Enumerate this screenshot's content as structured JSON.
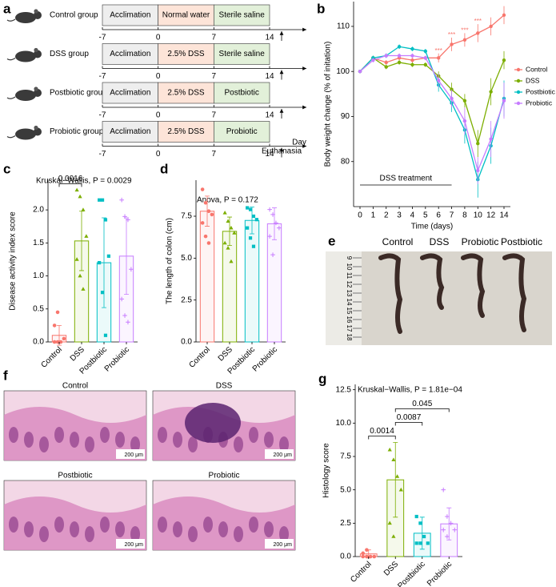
{
  "timeline": {
    "panel_label": "a",
    "days": [
      -7,
      0,
      7,
      14
    ],
    "groups": [
      {
        "name": "Control group",
        "phases": [
          "Acclimation",
          "Normal water",
          "Sterile saline"
        ]
      },
      {
        "name": "DSS group",
        "phases": [
          "Acclimation",
          "2.5% DSS",
          "Sterile saline"
        ]
      },
      {
        "name": "Postbiotic group",
        "phases": [
          "Acclimation",
          "2.5% DSS",
          "Postbiotic"
        ]
      },
      {
        "name": "Probiotic group",
        "phases": [
          "Acclimation",
          "2.5% DSS",
          "Probiotic"
        ]
      }
    ],
    "phase_colors": [
      "#eeeeee",
      "#fde4d8",
      "#e2f0d9"
    ],
    "end_label": "Euthanasia",
    "axis_label": "Day"
  },
  "chart_data": [
    {
      "type": "line",
      "panel_label": "b",
      "x_label": "Time (days)",
      "y_label": "Body weight change (% of initation)",
      "categories": [
        "0",
        "1",
        "2",
        "3",
        "4",
        "5",
        "6",
        "7",
        "8",
        "10",
        "12",
        "14"
      ],
      "ylim": [
        70,
        115.5
      ],
      "yticks": [
        80,
        90,
        100,
        110
      ],
      "annotation": "DSS treatment",
      "significance": [
        null,
        null,
        null,
        null,
        null,
        null,
        "***",
        "***",
        "***",
        "***",
        null,
        null
      ],
      "legend": "right",
      "series": [
        {
          "name": "Control",
          "color": "#F8766D",
          "values": [
            100,
            103,
            102,
            103,
            102.5,
            103,
            103,
            106,
            107,
            108.5,
            110,
            112.5
          ],
          "errors": [
            0,
            0.5,
            0.5,
            0.5,
            0.5,
            0.5,
            1,
            1.5,
            1.5,
            2,
            2,
            2
          ]
        },
        {
          "name": "DSS",
          "color": "#7CAE00",
          "values": [
            100,
            103,
            101,
            102,
            101.5,
            101.5,
            99,
            96,
            93.5,
            84,
            95.5,
            102.5
          ],
          "errors": [
            0,
            0.5,
            0.5,
            0.5,
            0.5,
            0.5,
            1,
            1.5,
            1.5,
            3,
            3,
            2
          ]
        },
        {
          "name": "Postbiotic",
          "color": "#00BFC4",
          "values": [
            100,
            103,
            103.5,
            105.5,
            105,
            104.5,
            97,
            93,
            87,
            76,
            83.5,
            94
          ],
          "errors": [
            0,
            0.5,
            0.5,
            0.5,
            0.5,
            0.5,
            1.5,
            2,
            3,
            4,
            4,
            4
          ]
        },
        {
          "name": "Probiotic",
          "color": "#C77CFF",
          "values": [
            100,
            102.5,
            103.5,
            103.5,
            103.5,
            103,
            98,
            94,
            89,
            78,
            85,
            93.5
          ],
          "errors": [
            0,
            0.5,
            0.5,
            0.5,
            0.5,
            0.5,
            1.5,
            2,
            3,
            3,
            4,
            4
          ]
        }
      ]
    },
    {
      "type": "bar",
      "panel_label": "c",
      "title": "Kruskal−Wallis, P = 0.0029",
      "y_label": "Disease activity index score",
      "categories": [
        "Control",
        "DSS",
        "Postbiotic",
        "Probiotic"
      ],
      "colors": [
        "#F8766D",
        "#7CAE00",
        "#00BFC4",
        "#C77CFF"
      ],
      "values": [
        0.1,
        1.53,
        1.2,
        1.3
      ],
      "errors": [
        0.15,
        0.45,
        0.68,
        0.58
      ],
      "points": [
        [
          0,
          0,
          0,
          0.05,
          0.25,
          0.45
        ],
        [
          2.3,
          2.2,
          2.0,
          1.6,
          1.25,
          1.0,
          0.8
        ],
        [
          2.15,
          2.15,
          1.85,
          1.3,
          1.2,
          0.75,
          0.1
        ],
        [
          2.15,
          1.9,
          1.85,
          1.1,
          0.65,
          0.4,
          0.3
        ]
      ],
      "ylim": [
        0,
        2.45
      ],
      "yticks": [
        {
          "value": 0,
          "label": "0.0"
        },
        {
          "value": 0.5,
          "label": "0.5"
        },
        {
          "value": 1,
          "label": "1.0"
        },
        {
          "value": 1.5,
          "label": "1.5"
        },
        {
          "value": 2,
          "label": "2.0"
        }
      ],
      "comparisons": [
        {
          "pair": [
            "Control",
            "DSS"
          ],
          "p": 0.0016
        }
      ]
    },
    {
      "type": "bar",
      "panel_label": "d",
      "title": "Anova, P = 0.172",
      "y_label": "The length of colon (cm)",
      "categories": [
        "Control",
        "DSS",
        "Postbiotic",
        "Probiotic"
      ],
      "colors": [
        "#F8766D",
        "#7CAE00",
        "#00BFC4",
        "#C77CFF"
      ],
      "values": [
        7.8,
        6.6,
        7.25,
        7.05
      ],
      "errors": [
        0.9,
        0.85,
        0.8,
        0.95
      ],
      "points": [
        [
          9.1,
          8.3,
          7.8,
          7.6,
          7.1,
          6.3,
          5.9
        ],
        [
          7.7,
          7.2,
          6.8,
          6.5,
          5.9,
          5.6,
          4.8
        ],
        [
          8.0,
          7.9,
          7.5,
          7.3,
          6.8,
          6.2,
          5.7
        ],
        [
          7.9,
          7.6,
          7.1,
          6.8,
          6.3,
          5.2
        ]
      ],
      "ylim": [
        0,
        9.65
      ],
      "yticks": [
        {
          "value": 0,
          "label": "0.0"
        },
        {
          "value": 2.5,
          "label": "2.5"
        },
        {
          "value": 5,
          "label": "5.0"
        },
        {
          "value": 7.5,
          "label": "7.5"
        }
      ],
      "comparisons": []
    },
    {
      "type": "bar",
      "panel_label": "g",
      "title": "Kruskal−Wallis, P = 1.81e−04",
      "y_label": "Histology score",
      "categories": [
        "Control",
        "DSS",
        "Postbiotic",
        "Probiotic"
      ],
      "colors": [
        "#F8766D",
        "#7CAE00",
        "#00BFC4",
        "#C77CFF"
      ],
      "values": [
        0.2,
        5.75,
        1.75,
        2.45
      ],
      "errors": [
        0.3,
        2.8,
        1.2,
        1.2
      ],
      "points": [
        [
          0,
          0,
          0,
          0,
          0.25,
          0.5
        ],
        [
          8.0,
          7.25,
          6.0,
          5.0,
          2.5,
          1.5
        ],
        [
          3.0,
          2.5,
          1.5,
          1.0,
          1.0,
          1.0
        ],
        [
          5.0,
          3.0,
          2.5,
          2.0,
          2.0,
          1.5
        ]
      ],
      "ylim": [
        0,
        12.9
      ],
      "yticks": [
        {
          "value": 0,
          "label": "0.0"
        },
        {
          "value": 2.5,
          "label": "2.5"
        },
        {
          "value": 5,
          "label": "5.0"
        },
        {
          "value": 7.5,
          "label": "7.5"
        },
        {
          "value": 10,
          "label": "10.0"
        },
        {
          "value": 12.5,
          "label": "12.5"
        }
      ],
      "comparisons": [
        {
          "pair": [
            "Control",
            "DSS"
          ],
          "p": 0.0014
        },
        {
          "pair": [
            "DSS",
            "Postbiotic"
          ],
          "p": 0.0087
        },
        {
          "pair": [
            "DSS",
            "Probiotic"
          ],
          "p": 0.045
        }
      ]
    }
  ],
  "photo": {
    "panel_label": "e",
    "columns": [
      "Control",
      "DSS",
      "Probiotic",
      "Postbiotic"
    ],
    "ruler": [
      9,
      10,
      11,
      12,
      13,
      14,
      15,
      16,
      17,
      18
    ]
  },
  "histology": {
    "panel_label": "f",
    "images": [
      {
        "title": "Control",
        "scale": "200 μm"
      },
      {
        "title": "DSS",
        "scale": "200 μm"
      },
      {
        "title": "Postbiotic",
        "scale": "200 μm"
      },
      {
        "title": "Probiotic",
        "scale": "200 μm"
      }
    ]
  }
}
